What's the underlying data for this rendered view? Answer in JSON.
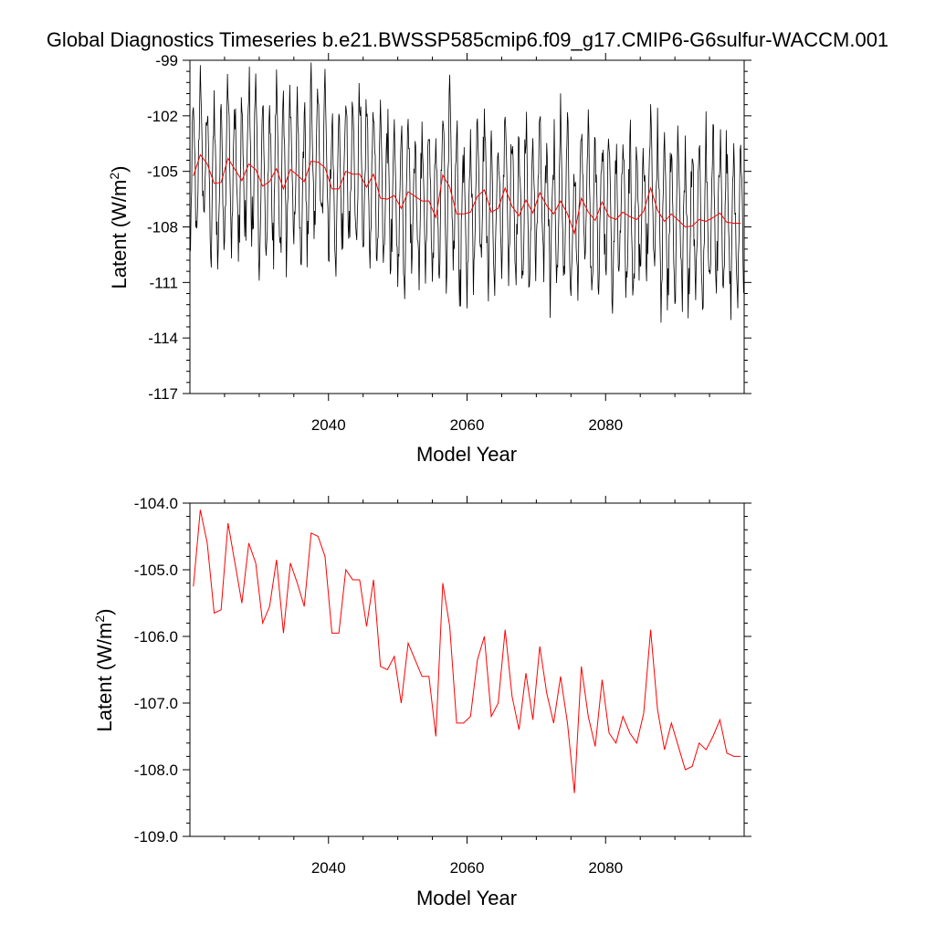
{
  "figure": {
    "title": "Global Diagnostics Timeseries b.e21.BWSSP585cmip6.f09_g17.CMIP6-G6sulfur-WACCM.001"
  },
  "chart_data": [
    {
      "type": "line",
      "xlabel": "Model Year",
      "ylabel": "Latent (W/m",
      "ylabel_sup": "2",
      "ylabel_close": ")",
      "xlim": [
        2020,
        2100
      ],
      "ylim": [
        -117,
        -99
      ],
      "yticks": [
        -117,
        -114,
        -111,
        -108,
        -105,
        -102,
        -99
      ],
      "ytick_labels": [
        "-117",
        "-114",
        "-111",
        "-108",
        "-105",
        "-102",
        "-99"
      ],
      "xticks": [
        2040,
        2060,
        2080
      ],
      "xtick_labels": [
        "2040",
        "2060",
        "2080"
      ],
      "grid": false,
      "series": [
        {
          "color": "#000000",
          "kind": "monthly",
          "x_start": 2020,
          "x_step": 0.08333,
          "annual_cycle_amplitude": 2.8,
          "annual_cycle_peak_month": 6,
          "follows_annual": true
        },
        {
          "color": "#ff0000",
          "kind": "annual",
          "x": [
            2020,
            2021,
            2022,
            2023,
            2024,
            2025,
            2026,
            2027,
            2028,
            2029,
            2030,
            2031,
            2032,
            2033,
            2034,
            2035,
            2036,
            2037,
            2038,
            2039,
            2040,
            2041,
            2042,
            2043,
            2044,
            2045,
            2046,
            2047,
            2048,
            2049,
            2050,
            2051,
            2052,
            2053,
            2054,
            2055,
            2056,
            2057,
            2058,
            2059,
            2060,
            2061,
            2062,
            2063,
            2064,
            2065,
            2066,
            2067,
            2068,
            2069,
            2070,
            2071,
            2072,
            2073,
            2074,
            2075,
            2076,
            2077,
            2078,
            2079,
            2080,
            2081,
            2082,
            2083,
            2084,
            2085,
            2086,
            2087,
            2088,
            2089,
            2090,
            2091,
            2092,
            2093,
            2094,
            2095,
            2096,
            2097,
            2098,
            2099
          ],
          "values": [
            -105.25,
            -104.1,
            -104.6,
            -105.65,
            -105.6,
            -104.3,
            -104.9,
            -105.5,
            -104.6,
            -104.9,
            -105.8,
            -105.55,
            -104.85,
            -105.95,
            -104.9,
            -105.2,
            -105.55,
            -104.45,
            -104.5,
            -104.8,
            -105.95,
            -105.95,
            -105.0,
            -105.15,
            -105.15,
            -105.85,
            -105.15,
            -106.45,
            -106.5,
            -106.3,
            -107.0,
            -106.1,
            -106.35,
            -106.6,
            -106.6,
            -107.5,
            -105.2,
            -105.85,
            -107.3,
            -107.3,
            -107.2,
            -106.35,
            -106.0,
            -107.2,
            -107.0,
            -105.9,
            -106.9,
            -107.4,
            -106.55,
            -107.25,
            -106.15,
            -106.85,
            -107.3,
            -106.6,
            -107.3,
            -108.35,
            -106.45,
            -107.2,
            -107.65,
            -106.65,
            -107.45,
            -107.6,
            -107.2,
            -107.45,
            -107.6,
            -107.15,
            -105.9,
            -107.1,
            -107.7,
            -107.3,
            -107.65,
            -108.0,
            -107.95,
            -107.6,
            -107.7,
            -107.5,
            -107.25,
            -107.75,
            -107.8,
            -107.8
          ]
        }
      ]
    },
    {
      "type": "line",
      "xlabel": "Model Year",
      "ylabel": "Latent (W/m",
      "ylabel_sup": "2",
      "ylabel_close": ")",
      "xlim": [
        2020,
        2100
      ],
      "ylim": [
        -109,
        -104
      ],
      "yticks": [
        -109,
        -108,
        -107,
        -106,
        -105,
        -104
      ],
      "ytick_labels": [
        "-109.0",
        "-108.0",
        "-107.0",
        "-106.0",
        "-105.0",
        "-104.0"
      ],
      "xticks": [
        2040,
        2060,
        2080
      ],
      "xtick_labels": [
        "2040",
        "2060",
        "2080"
      ],
      "grid": false,
      "series": [
        {
          "color": "#ff0000",
          "kind": "annual",
          "same_as_panel1_series": 1
        }
      ]
    }
  ]
}
